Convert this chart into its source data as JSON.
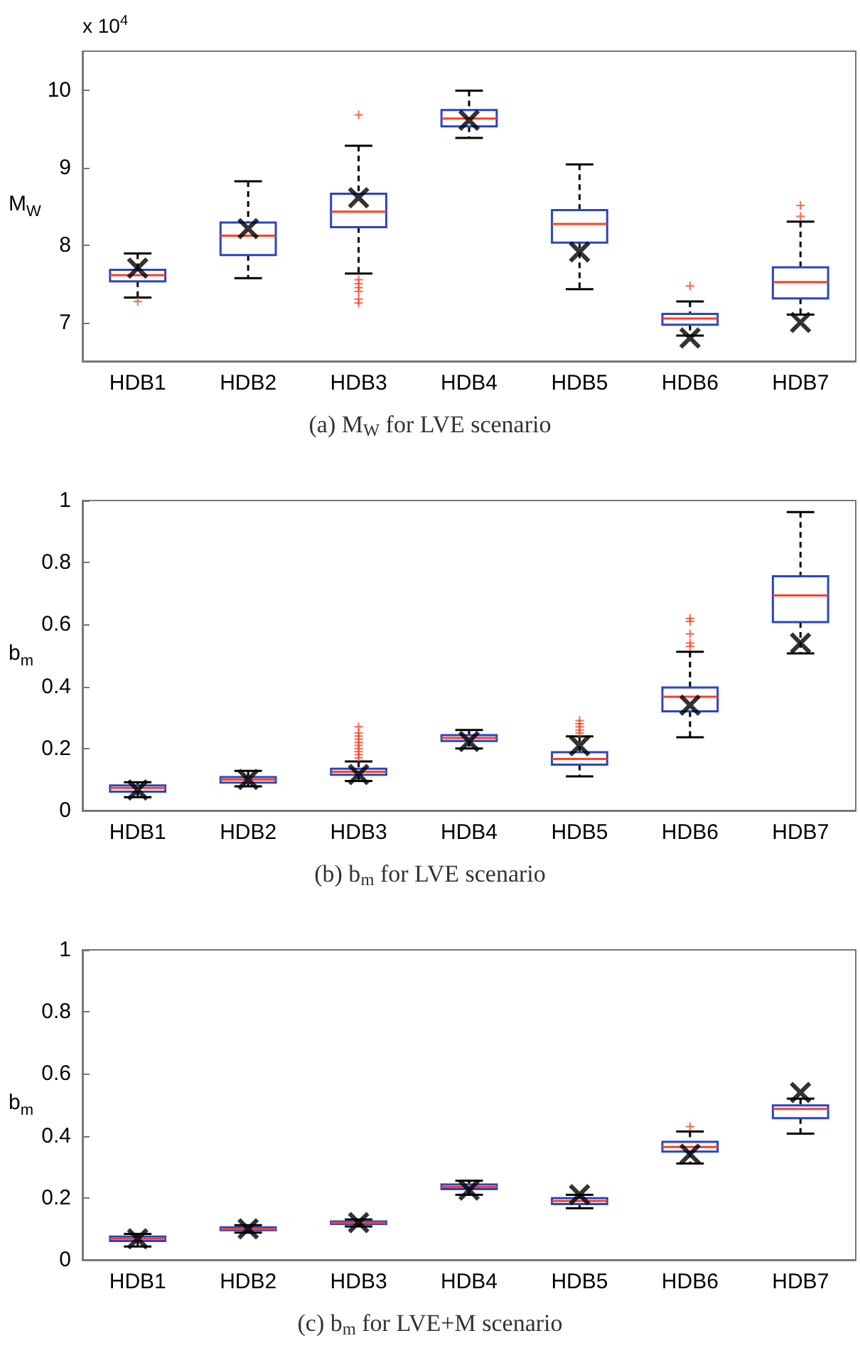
{
  "chart_data": [
    {
      "type": "box",
      "title": "(a) M$_{W}$ for LVE scenario",
      "ylabel": "M$_{W}$",
      "annotations": [
        "x 10$^{4}$"
      ],
      "categories": [
        "HDB1",
        "HDB2",
        "HDB3",
        "HDB4",
        "HDB5",
        "HDB6",
        "HDB7"
      ],
      "ylim": [
        6.5,
        10.5
      ],
      "yticks": [
        7,
        8,
        9,
        10
      ],
      "grid": false,
      "marker": "cross",
      "series": [
        {
          "type": "box",
          "color": "#2b45c4",
          "boxes": [
            {
              "low": 7.32,
              "q1": 7.53,
              "median": 7.61,
              "q3": 7.68,
              "high": 7.89,
              "outliers": [
                7.27
              ]
            },
            {
              "low": 7.57,
              "q1": 7.87,
              "median": 8.12,
              "q3": 8.29,
              "high": 8.82
            },
            {
              "low": 7.63,
              "q1": 8.23,
              "median": 8.43,
              "q3": 8.66,
              "high": 9.28,
              "outliers": [
                9.68,
                7.55,
                7.5,
                7.45,
                7.4,
                7.3,
                7.25
              ]
            },
            {
              "low": 9.38,
              "q1": 9.53,
              "median": 9.63,
              "q3": 9.74,
              "high": 9.99
            },
            {
              "low": 7.43,
              "q1": 8.03,
              "median": 8.27,
              "q3": 8.45,
              "high": 9.04
            },
            {
              "low": 6.83,
              "q1": 6.97,
              "median": 7.05,
              "q3": 7.11,
              "high": 7.27,
              "outliers": [
                7.47
              ]
            },
            {
              "low": 7.1,
              "q1": 7.31,
              "median": 7.52,
              "q3": 7.71,
              "high": 8.3,
              "outliers": [
                8.51,
                8.37
              ]
            }
          ]
        },
        {
          "type": "scatter",
          "color": "#000000",
          "x": [
            "HDB1",
            "HDB2",
            "HDB3",
            "HDB4",
            "HDB5",
            "HDB6",
            "HDB7"
          ],
          "values": [
            7.7,
            8.21,
            8.61,
            9.61,
            7.91,
            6.8,
            7.0
          ]
        }
      ]
    },
    {
      "type": "box",
      "title": "(b) b$_{m}$ for LVE scenario",
      "ylabel": "b$_{m}$",
      "categories": [
        "HDB1",
        "HDB2",
        "HDB3",
        "HDB4",
        "HDB5",
        "HDB6",
        "HDB7"
      ],
      "ylim": [
        0,
        1
      ],
      "yticks": [
        0,
        0.2,
        0.4,
        0.6,
        0.8,
        1
      ],
      "grid": false,
      "marker": "cross",
      "series": [
        {
          "type": "box",
          "color": "#2b45c4",
          "boxes": [
            {
              "low": 0.043,
              "q1": 0.061,
              "median": 0.073,
              "q3": 0.081,
              "high": 0.091
            },
            {
              "low": 0.078,
              "q1": 0.09,
              "median": 0.1,
              "q3": 0.108,
              "high": 0.128
            },
            {
              "low": 0.095,
              "q1": 0.115,
              "median": 0.125,
              "q3": 0.135,
              "high": 0.158,
              "outliers": [
                0.17,
                0.18,
                0.19,
                0.2,
                0.21,
                0.22,
                0.23,
                0.24,
                0.25,
                0.27
              ]
            },
            {
              "low": 0.2,
              "q1": 0.224,
              "median": 0.234,
              "q3": 0.243,
              "high": 0.26
            },
            {
              "low": 0.11,
              "q1": 0.148,
              "median": 0.166,
              "q3": 0.188,
              "high": 0.239,
              "outliers": [
                0.25,
                0.26,
                0.27,
                0.28,
                0.29
              ]
            },
            {
              "low": 0.236,
              "q1": 0.32,
              "median": 0.367,
              "q3": 0.397,
              "high": 0.512,
              "outliers": [
                0.53,
                0.54,
                0.57,
                0.61,
                0.62
              ]
            },
            {
              "low": 0.507,
              "q1": 0.608,
              "median": 0.694,
              "q3": 0.756,
              "high": 0.963
            }
          ]
        },
        {
          "type": "scatter",
          "color": "#000000",
          "x": [
            "HDB1",
            "HDB2",
            "HDB3",
            "HDB4",
            "HDB5",
            "HDB6",
            "HDB7"
          ],
          "values": [
            0.066,
            0.1,
            0.116,
            0.223,
            0.209,
            0.34,
            0.54
          ]
        }
      ]
    },
    {
      "type": "box",
      "title": "(c) b$_{m}$ for LVE+M scenario",
      "ylabel": "b$_{m}$",
      "categories": [
        "HDB1",
        "HDB2",
        "HDB3",
        "HDB4",
        "HDB5",
        "HDB6",
        "HDB7"
      ],
      "ylim": [
        0,
        1
      ],
      "yticks": [
        0,
        0.2,
        0.4,
        0.6,
        0.8,
        1
      ],
      "grid": false,
      "marker": "cross",
      "series": [
        {
          "type": "box",
          "color": "#2b45c4",
          "boxes": [
            {
              "low": 0.043,
              "q1": 0.061,
              "median": 0.068,
              "q3": 0.075,
              "high": 0.084
            },
            {
              "low": 0.088,
              "q1": 0.096,
              "median": 0.1,
              "q3": 0.105,
              "high": 0.112
            },
            {
              "low": 0.108,
              "q1": 0.116,
              "median": 0.12,
              "q3": 0.124,
              "high": 0.13
            },
            {
              "low": 0.21,
              "q1": 0.228,
              "median": 0.235,
              "q3": 0.243,
              "high": 0.255
            },
            {
              "low": 0.166,
              "q1": 0.18,
              "median": 0.19,
              "q3": 0.199,
              "high": 0.21
            },
            {
              "low": 0.311,
              "q1": 0.349,
              "median": 0.364,
              "q3": 0.381,
              "high": 0.414,
              "outliers": [
                0.43
              ]
            },
            {
              "low": 0.407,
              "q1": 0.457,
              "median": 0.487,
              "q3": 0.498,
              "high": 0.52
            }
          ]
        },
        {
          "type": "scatter",
          "color": "#000000",
          "x": [
            "HDB1",
            "HDB2",
            "HDB3",
            "HDB4",
            "HDB5",
            "HDB6",
            "HDB7"
          ],
          "values": [
            0.068,
            0.1,
            0.12,
            0.225,
            0.21,
            0.341,
            0.54
          ]
        }
      ]
    }
  ]
}
